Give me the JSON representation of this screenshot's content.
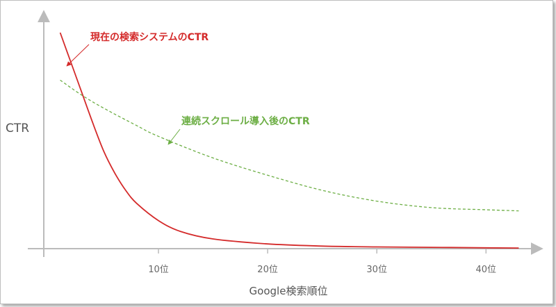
{
  "chart_data": {
    "type": "line",
    "xlabel": "Google検索順位",
    "ylabel": "CTR",
    "xlim": [
      -0.5,
      44.5
    ],
    "ylim": [
      0,
      1
    ],
    "xticks": [
      10,
      20,
      30,
      40
    ],
    "xtick_labels": [
      "10位",
      "20位",
      "30位",
      "40位"
    ],
    "grid": false,
    "colors": {
      "current": "#d42a2a",
      "scroll": "#6cae44",
      "axis": "#bbbbbb"
    },
    "series": [
      {
        "name": "現在の検索システムのCTR",
        "style": "solid",
        "x": [
          1,
          2,
          3,
          4,
          5,
          6,
          7,
          8,
          10,
          12,
          15,
          20,
          25,
          30,
          35,
          40,
          43
        ],
        "y": [
          1.0,
          0.86,
          0.72,
          0.58,
          0.45,
          0.35,
          0.27,
          0.21,
          0.13,
          0.08,
          0.045,
          0.022,
          0.012,
          0.008,
          0.006,
          0.004,
          0.003
        ]
      },
      {
        "name": "連続スクロール導入後のCTR",
        "style": "dashed",
        "x": [
          1,
          3,
          5,
          8,
          10,
          15,
          20,
          25,
          30,
          35,
          40,
          43
        ],
        "y": [
          0.78,
          0.71,
          0.65,
          0.57,
          0.52,
          0.42,
          0.34,
          0.27,
          0.22,
          0.19,
          0.18,
          0.175
        ]
      }
    ],
    "annotations": [
      {
        "text": "現在の検索システムのCTR",
        "series": 0
      },
      {
        "text": "連続スクロール導入後のCTR",
        "series": 1
      }
    ]
  }
}
